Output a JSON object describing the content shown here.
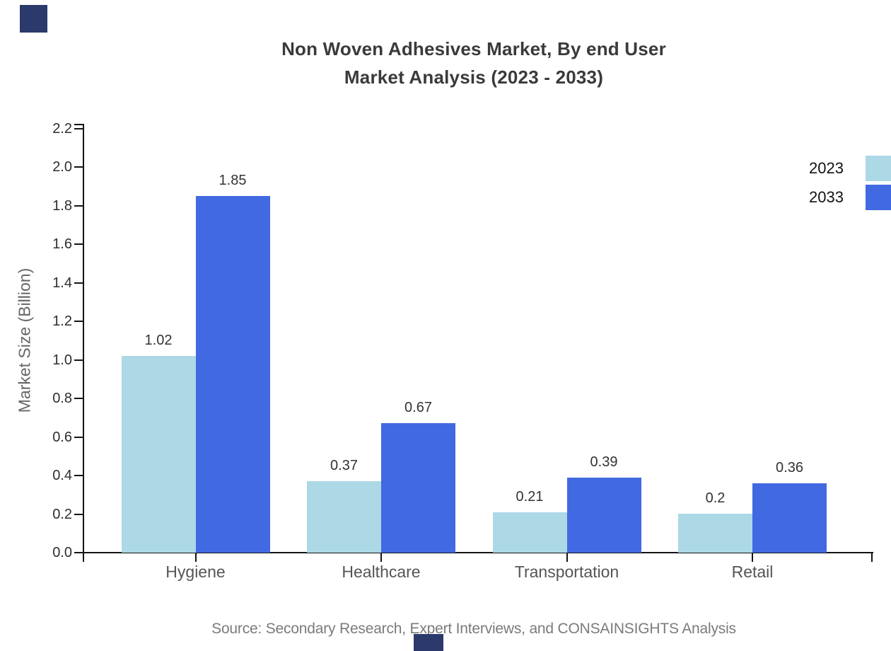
{
  "page": {
    "title_line1": "Non Woven Adhesives Market, By end User",
    "title_line2": "Market Analysis (2023 - 2033)",
    "source": "Source: Secondary Research, Expert Interviews, and CONSAINSIGHTS Analysis"
  },
  "legend": {
    "position": "top-right",
    "items": [
      {
        "label": "2023",
        "color": "#ADD8E6"
      },
      {
        "label": "2033",
        "color": "#4169E1"
      }
    ]
  },
  "decor": {
    "navy_square_color": "#2B3A6B"
  },
  "chart_data": {
    "type": "bar",
    "title": "Non Woven Adhesives Market, By end User Market Analysis (2023 - 2033)",
    "categories": [
      "Hygiene",
      "Healthcare",
      "Transportation",
      "Retail"
    ],
    "series": [
      {
        "name": "2023",
        "color": "#ADD8E6",
        "values": [
          1.02,
          0.37,
          0.21,
          0.2
        ]
      },
      {
        "name": "2033",
        "color": "#4169E1",
        "values": [
          1.85,
          0.67,
          0.39,
          0.36
        ]
      }
    ],
    "xlabel": "",
    "ylabel": "Market Size (Billion)",
    "ylim": [
      0.0,
      2.2
    ],
    "ytick_step": 0.2,
    "yticks": [
      "0.0",
      "0.2",
      "0.4",
      "0.6",
      "0.8",
      "1.0",
      "1.2",
      "1.4",
      "1.6",
      "1.8",
      "2.0",
      "2.2"
    ],
    "grid": false,
    "bar_value_labels_shown": true,
    "legend_position": "right",
    "axis_color": "#141414"
  }
}
